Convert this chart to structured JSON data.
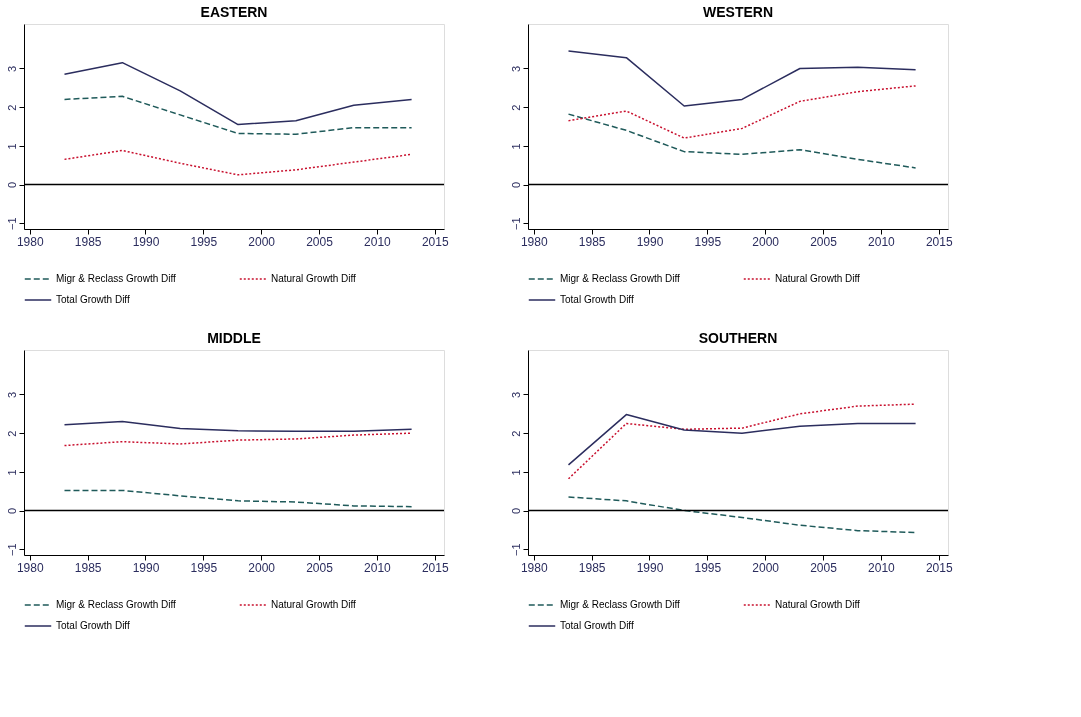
{
  "chart_data": [
    {
      "type": "line",
      "title": "EASTERN",
      "x": [
        1983,
        1988,
        1993,
        1998,
        2003,
        2008,
        2013
      ],
      "xlim": [
        1979.5,
        2015.8
      ],
      "xticks": [
        1980,
        1985,
        1990,
        1995,
        2000,
        2005,
        2010,
        2015
      ],
      "ylim": [
        -1.15,
        4.15
      ],
      "yticks": [
        -1,
        0,
        1,
        2,
        3
      ],
      "grid": false,
      "legend": "bottom",
      "marker": "none",
      "ref_lines": [
        {
          "axis": "y",
          "value": 0,
          "color": "#000000",
          "line_style": "solid"
        }
      ],
      "series": [
        {
          "name": "Migr & Reclass Growth Diff",
          "color": "#1f5a5a",
          "line_style": "dashed",
          "values": [
            2.2,
            2.28,
            1.8,
            1.32,
            1.3,
            1.47,
            1.47
          ]
        },
        {
          "name": "Natural Growth Diff",
          "color": "#c8102e",
          "line_style": "dotted",
          "values": [
            0.65,
            0.88,
            0.55,
            0.25,
            0.38,
            0.58,
            0.78
          ]
        },
        {
          "name": "Total Growth Diff",
          "color": "#2b2d5e",
          "line_style": "solid",
          "values": [
            2.85,
            3.15,
            2.42,
            1.55,
            1.65,
            2.05,
            2.2
          ]
        }
      ]
    },
    {
      "type": "line",
      "title": "WESTERN",
      "x": [
        1983,
        1988,
        1993,
        1998,
        2003,
        2008,
        2013
      ],
      "xlim": [
        1979.5,
        2015.8
      ],
      "xticks": [
        1980,
        1985,
        1990,
        1995,
        2000,
        2005,
        2010,
        2015
      ],
      "ylim": [
        -1.15,
        4.15
      ],
      "yticks": [
        -1,
        0,
        1,
        2,
        3
      ],
      "grid": false,
      "legend": "bottom",
      "marker": "none",
      "ref_lines": [
        {
          "axis": "y",
          "value": 0,
          "color": "#000000",
          "line_style": "solid"
        }
      ],
      "series": [
        {
          "name": "Migr & Reclass Growth Diff",
          "color": "#1f5a5a",
          "line_style": "dashed",
          "values": [
            1.82,
            1.4,
            0.85,
            0.78,
            0.9,
            0.65,
            0.43
          ]
        },
        {
          "name": "Natural Growth Diff",
          "color": "#c8102e",
          "line_style": "dotted",
          "values": [
            1.65,
            1.9,
            1.2,
            1.45,
            2.15,
            2.4,
            2.55
          ]
        },
        {
          "name": "Total Growth Diff",
          "color": "#2b2d5e",
          "line_style": "solid",
          "values": [
            3.45,
            3.28,
            2.03,
            2.2,
            3.0,
            3.03,
            2.97
          ]
        }
      ]
    },
    {
      "type": "line",
      "title": "MIDDLE",
      "x": [
        1983,
        1988,
        1993,
        1998,
        2003,
        2008,
        2013
      ],
      "xlim": [
        1979.5,
        2015.8
      ],
      "xticks": [
        1980,
        1985,
        1990,
        1995,
        2000,
        2005,
        2010,
        2015
      ],
      "ylim": [
        -1.15,
        4.15
      ],
      "yticks": [
        -1,
        0,
        1,
        2,
        3
      ],
      "grid": false,
      "legend": "bottom",
      "marker": "none",
      "ref_lines": [
        {
          "axis": "y",
          "value": 0,
          "color": "#000000",
          "line_style": "solid"
        }
      ],
      "series": [
        {
          "name": "Migr & Reclass Growth Diff",
          "color": "#1f5a5a",
          "line_style": "dashed",
          "values": [
            0.52,
            0.52,
            0.38,
            0.25,
            0.22,
            0.12,
            0.1
          ]
        },
        {
          "name": "Natural Growth Diff",
          "color": "#c8102e",
          "line_style": "dotted",
          "values": [
            1.68,
            1.78,
            1.72,
            1.82,
            1.85,
            1.95,
            2.0
          ]
        },
        {
          "name": "Total Growth Diff",
          "color": "#2b2d5e",
          "line_style": "solid",
          "values": [
            2.22,
            2.3,
            2.12,
            2.06,
            2.05,
            2.05,
            2.1
          ]
        }
      ]
    },
    {
      "type": "line",
      "title": "SOUTHERN",
      "x": [
        1983,
        1988,
        1993,
        1998,
        2003,
        2008,
        2013
      ],
      "xlim": [
        1979.5,
        2015.8
      ],
      "xticks": [
        1980,
        1985,
        1990,
        1995,
        2000,
        2005,
        2010,
        2015
      ],
      "ylim": [
        -1.15,
        4.15
      ],
      "yticks": [
        -1,
        0,
        1,
        2,
        3
      ],
      "grid": false,
      "legend": "bottom",
      "marker": "none",
      "ref_lines": [
        {
          "axis": "y",
          "value": 0,
          "color": "#000000",
          "line_style": "solid"
        }
      ],
      "series": [
        {
          "name": "Migr & Reclass Growth Diff",
          "color": "#1f5a5a",
          "line_style": "dashed",
          "values": [
            0.35,
            0.25,
            0.0,
            -0.18,
            -0.38,
            -0.52,
            -0.57
          ]
        },
        {
          "name": "Natural Growth Diff",
          "color": "#c8102e",
          "line_style": "dotted",
          "values": [
            0.82,
            2.25,
            2.1,
            2.13,
            2.5,
            2.7,
            2.75
          ]
        },
        {
          "name": "Total Growth Diff",
          "color": "#2b2d5e",
          "line_style": "solid",
          "values": [
            1.18,
            2.48,
            2.08,
            2.0,
            2.18,
            2.25,
            2.25
          ]
        }
      ]
    }
  ]
}
